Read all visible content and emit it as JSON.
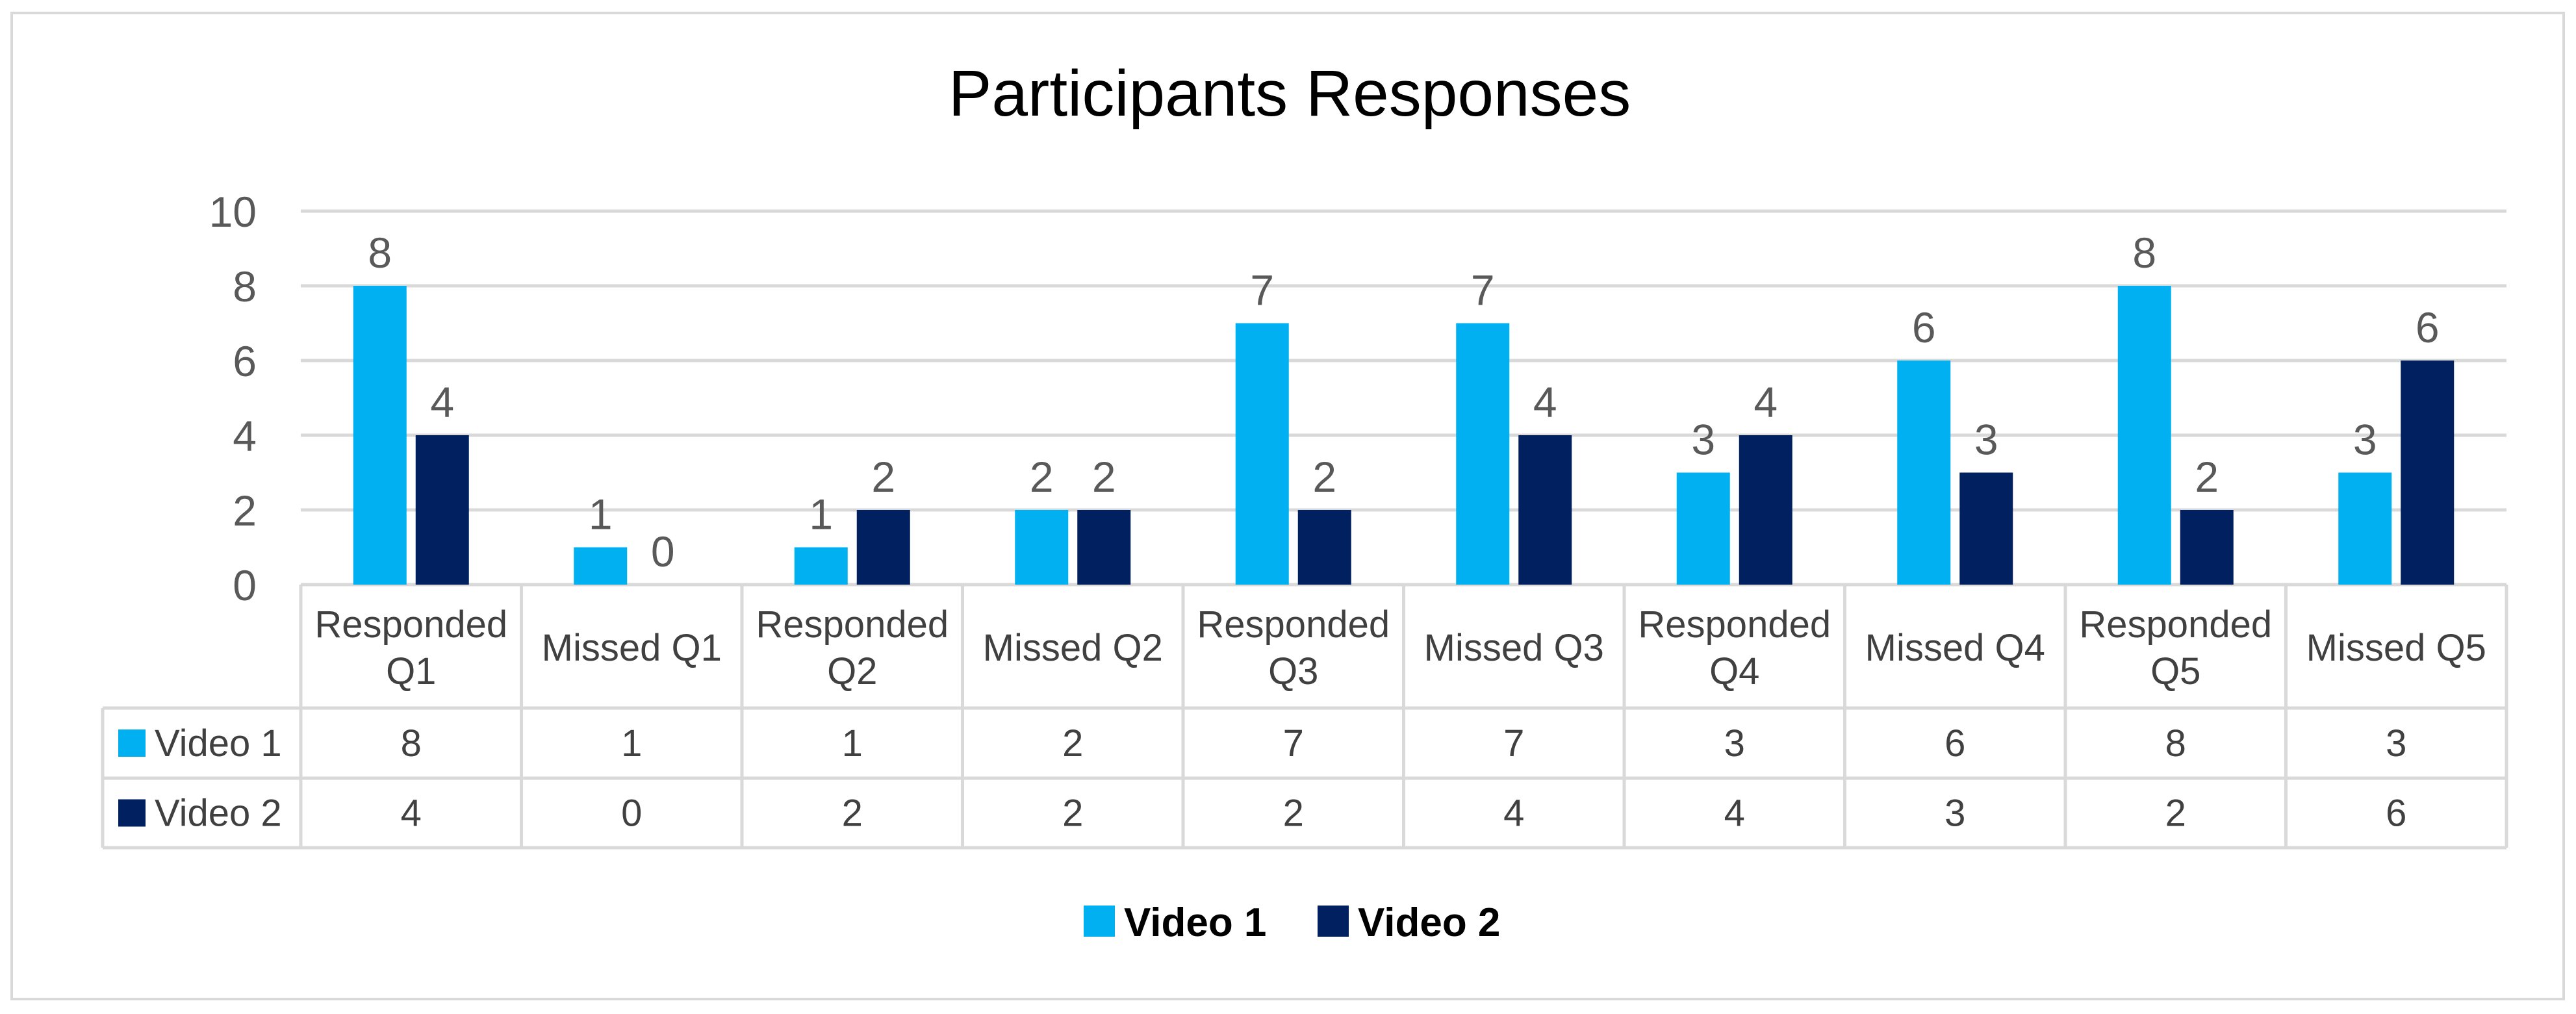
{
  "chart_data": {
    "type": "bar",
    "title": "Participants Responses",
    "xlabel": "",
    "ylabel": "",
    "ylim": [
      0,
      10
    ],
    "yticks": [
      "0",
      "2",
      "4",
      "6",
      "8",
      "10"
    ],
    "grid": true,
    "data_table": true,
    "legend_placement": "bottom",
    "categories": [
      [
        "Responded",
        "Q1"
      ],
      [
        "Missed Q1"
      ],
      [
        "Responded",
        "Q2"
      ],
      [
        "Missed Q2"
      ],
      [
        "Responded",
        "Q3"
      ],
      [
        "Missed Q3"
      ],
      [
        "Responded",
        "Q4"
      ],
      [
        "Missed Q4"
      ],
      [
        "Responded",
        "Q5"
      ],
      [
        "Missed Q5"
      ]
    ],
    "series": [
      {
        "name": "Video 1",
        "color": "#00b0f0",
        "values": [
          8,
          1,
          1,
          2,
          7,
          7,
          3,
          6,
          8,
          3
        ]
      },
      {
        "name": "Video 2",
        "color": "#002060",
        "values": [
          4,
          0,
          2,
          2,
          2,
          4,
          4,
          3,
          2,
          6
        ]
      }
    ]
  }
}
